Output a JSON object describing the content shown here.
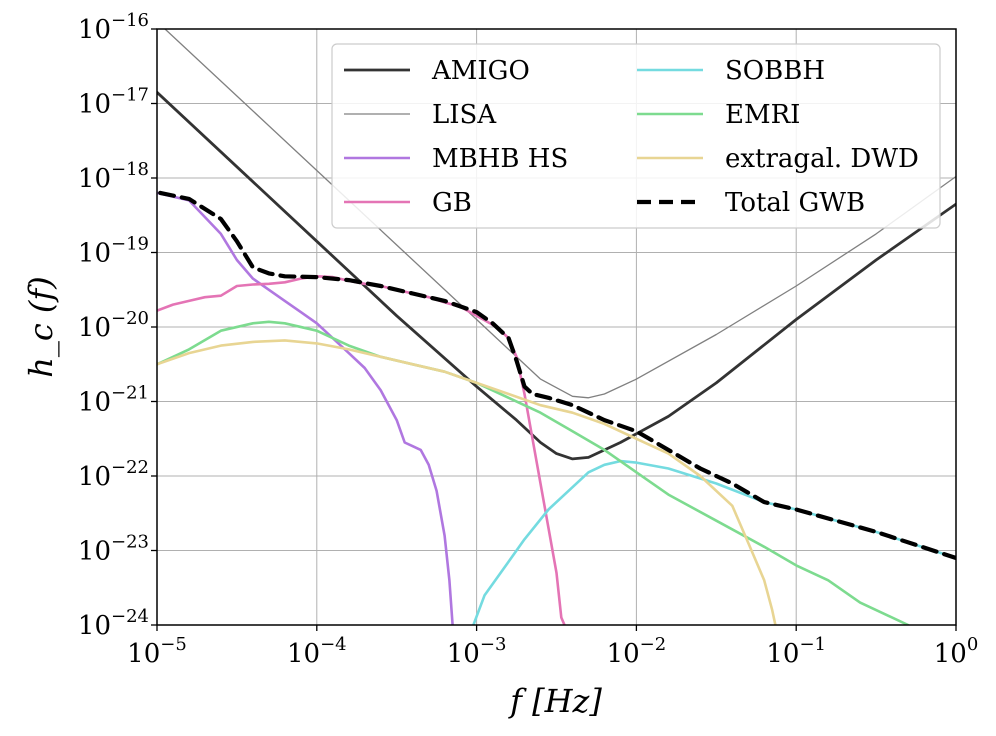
{
  "chart_data": {
    "type": "line",
    "xscale": "log",
    "yscale": "log",
    "xlim": [
      1e-05,
      1
    ],
    "ylim": [
      1e-24,
      1e-16
    ],
    "xlabel": "f [Hz]",
    "ylabel": "h_c (f)",
    "grid": true,
    "legend_position": "top-right",
    "x_ticks": [
      {
        "base": "10",
        "exp": "−5"
      },
      {
        "base": "10",
        "exp": "−4"
      },
      {
        "base": "10",
        "exp": "−3"
      },
      {
        "base": "10",
        "exp": "−2"
      },
      {
        "base": "10",
        "exp": "−1"
      },
      {
        "base": "10",
        "exp": "0"
      }
    ],
    "y_ticks": [
      {
        "base": "10",
        "exp": "−24"
      },
      {
        "base": "10",
        "exp": "−23"
      },
      {
        "base": "10",
        "exp": "−22"
      },
      {
        "base": "10",
        "exp": "−21"
      },
      {
        "base": "10",
        "exp": "−20"
      },
      {
        "base": "10",
        "exp": "−19"
      },
      {
        "base": "10",
        "exp": "−18"
      },
      {
        "base": "10",
        "exp": "−17"
      },
      {
        "base": "10",
        "exp": "−16"
      }
    ],
    "series": [
      {
        "name": "AMIGO",
        "color": "#333333",
        "width": 2.8,
        "dash": "",
        "log_points": [
          [
            -5,
            -16.85
          ],
          [
            -4.5,
            -17.85
          ],
          [
            -4,
            -18.85
          ],
          [
            -3.5,
            -19.85
          ],
          [
            -3,
            -20.8
          ],
          [
            -2.75,
            -21.25
          ],
          [
            -2.6,
            -21.55
          ],
          [
            -2.5,
            -21.7
          ],
          [
            -2.4,
            -21.77
          ],
          [
            -2.3,
            -21.75
          ],
          [
            -2.1,
            -21.55
          ],
          [
            -1.8,
            -21.2
          ],
          [
            -1.5,
            -20.75
          ],
          [
            -1,
            -19.9
          ],
          [
            -0.5,
            -19.1
          ],
          [
            0,
            -18.35
          ]
        ]
      },
      {
        "name": "LISA",
        "color": "#808080",
        "width": 1.3,
        "dash": "",
        "log_points": [
          [
            -4.95,
            -16
          ],
          [
            -4.5,
            -16.9
          ],
          [
            -4,
            -17.9
          ],
          [
            -3.5,
            -18.9
          ],
          [
            -3,
            -19.9
          ],
          [
            -2.8,
            -20.3
          ],
          [
            -2.6,
            -20.7
          ],
          [
            -2.4,
            -20.93
          ],
          [
            -2.3,
            -20.95
          ],
          [
            -2.2,
            -20.9
          ],
          [
            -2,
            -20.7
          ],
          [
            -1.5,
            -20.1
          ],
          [
            -1,
            -19.45
          ],
          [
            -0.5,
            -18.75
          ],
          [
            0,
            -17.98
          ]
        ]
      },
      {
        "name": "MBHB HS",
        "color": "#b077e0",
        "width": 2.6,
        "dash": "",
        "log_points": [
          [
            -5,
            -18.2
          ],
          [
            -4.8,
            -18.3
          ],
          [
            -4.6,
            -18.75
          ],
          [
            -4.5,
            -19.1
          ],
          [
            -4.4,
            -19.35
          ],
          [
            -4.3,
            -19.5
          ],
          [
            -4.2,
            -19.65
          ],
          [
            -4.1,
            -19.8
          ],
          [
            -4,
            -19.95
          ],
          [
            -3.9,
            -20.15
          ],
          [
            -3.8,
            -20.35
          ],
          [
            -3.7,
            -20.55
          ],
          [
            -3.6,
            -20.85
          ],
          [
            -3.5,
            -21.25
          ],
          [
            -3.45,
            -21.55
          ],
          [
            -3.4,
            -21.6
          ],
          [
            -3.35,
            -21.65
          ],
          [
            -3.3,
            -21.85
          ],
          [
            -3.25,
            -22.2
          ],
          [
            -3.2,
            -22.8
          ],
          [
            -3.17,
            -23.4
          ],
          [
            -3.15,
            -24
          ]
        ]
      },
      {
        "name": "GB",
        "color": "#e474b5",
        "width": 2.6,
        "dash": "",
        "log_points": [
          [
            -5,
            -19.78
          ],
          [
            -4.9,
            -19.7
          ],
          [
            -4.8,
            -19.65
          ],
          [
            -4.7,
            -19.6
          ],
          [
            -4.6,
            -19.58
          ],
          [
            -4.5,
            -19.45
          ],
          [
            -4.4,
            -19.43
          ],
          [
            -4.3,
            -19.42
          ],
          [
            -4.2,
            -19.4
          ],
          [
            -4.1,
            -19.35
          ],
          [
            -4,
            -19.32
          ],
          [
            -3.9,
            -19.33
          ],
          [
            -3.8,
            -19.38
          ],
          [
            -3.7,
            -19.42
          ],
          [
            -3.6,
            -19.45
          ],
          [
            -3.5,
            -19.5
          ],
          [
            -3.4,
            -19.55
          ],
          [
            -3.3,
            -19.6
          ],
          [
            -3.2,
            -19.67
          ],
          [
            -3.1,
            -19.73
          ],
          [
            -3,
            -19.85
          ],
          [
            -2.9,
            -19.97
          ],
          [
            -2.85,
            -20.05
          ],
          [
            -2.8,
            -20.15
          ],
          [
            -2.75,
            -20.4
          ],
          [
            -2.7,
            -20.9
          ],
          [
            -2.65,
            -21.5
          ],
          [
            -2.6,
            -22.1
          ],
          [
            -2.55,
            -22.7
          ],
          [
            -2.5,
            -23.3
          ],
          [
            -2.47,
            -23.9
          ],
          [
            -2.45,
            -24
          ]
        ]
      },
      {
        "name": "SOBBH",
        "color": "#74dbe0",
        "width": 2.6,
        "dash": "",
        "log_points": [
          [
            -3.02,
            -24
          ],
          [
            -2.95,
            -23.6
          ],
          [
            -2.85,
            -23.3
          ],
          [
            -2.7,
            -22.85
          ],
          [
            -2.55,
            -22.45
          ],
          [
            -2.4,
            -22.15
          ],
          [
            -2.3,
            -21.95
          ],
          [
            -2.2,
            -21.85
          ],
          [
            -2.1,
            -21.8
          ],
          [
            -2,
            -21.82
          ],
          [
            -1.8,
            -21.9
          ],
          [
            -1.5,
            -22.1
          ],
          [
            -1.2,
            -22.35
          ],
          [
            -1,
            -22.45
          ],
          [
            -0.5,
            -22.75
          ],
          [
            0,
            -23.1
          ]
        ]
      },
      {
        "name": "EMRI",
        "color": "#7ddb8f",
        "width": 2.6,
        "dash": "",
        "log_points": [
          [
            -5,
            -20.5
          ],
          [
            -4.8,
            -20.3
          ],
          [
            -4.6,
            -20.05
          ],
          [
            -4.4,
            -19.95
          ],
          [
            -4.3,
            -19.93
          ],
          [
            -4.2,
            -19.95
          ],
          [
            -4,
            -20.05
          ],
          [
            -3.8,
            -20.25
          ],
          [
            -3.6,
            -20.4
          ],
          [
            -3.4,
            -20.5
          ],
          [
            -3.2,
            -20.6
          ],
          [
            -3,
            -20.75
          ],
          [
            -2.8,
            -20.95
          ],
          [
            -2.6,
            -21.15
          ],
          [
            -2.4,
            -21.4
          ],
          [
            -2.2,
            -21.65
          ],
          [
            -2,
            -21.95
          ],
          [
            -1.8,
            -22.25
          ],
          [
            -1.5,
            -22.6
          ],
          [
            -1.2,
            -22.95
          ],
          [
            -1,
            -23.2
          ],
          [
            -0.8,
            -23.4
          ],
          [
            -0.6,
            -23.7
          ],
          [
            -0.3,
            -24
          ]
        ]
      },
      {
        "name": "extragal. DWD",
        "color": "#e8d593",
        "width": 2.6,
        "dash": "",
        "log_points": [
          [
            -5,
            -20.5
          ],
          [
            -4.8,
            -20.35
          ],
          [
            -4.6,
            -20.25
          ],
          [
            -4.4,
            -20.2
          ],
          [
            -4.2,
            -20.18
          ],
          [
            -4,
            -20.22
          ],
          [
            -3.8,
            -20.3
          ],
          [
            -3.6,
            -20.4
          ],
          [
            -3.4,
            -20.5
          ],
          [
            -3.2,
            -20.6
          ],
          [
            -3,
            -20.75
          ],
          [
            -2.8,
            -20.9
          ],
          [
            -2.6,
            -21.05
          ],
          [
            -2.4,
            -21.15
          ],
          [
            -2.2,
            -21.3
          ],
          [
            -2,
            -21.5
          ],
          [
            -1.8,
            -21.7
          ],
          [
            -1.6,
            -22
          ],
          [
            -1.4,
            -22.4
          ],
          [
            -1.3,
            -22.9
          ],
          [
            -1.2,
            -23.4
          ],
          [
            -1.15,
            -23.8
          ],
          [
            -1.13,
            -24
          ]
        ]
      },
      {
        "name": "Total GWB",
        "color": "#000000",
        "width": 4.2,
        "dash": "14,8",
        "log_points": [
          [
            -4.98,
            -18.2
          ],
          [
            -4.8,
            -18.28
          ],
          [
            -4.6,
            -18.55
          ],
          [
            -4.5,
            -18.85
          ],
          [
            -4.4,
            -19.2
          ],
          [
            -4.3,
            -19.28
          ],
          [
            -4.2,
            -19.32
          ],
          [
            -4,
            -19.33
          ],
          [
            -3.8,
            -19.37
          ],
          [
            -3.6,
            -19.45
          ],
          [
            -3.4,
            -19.55
          ],
          [
            -3.2,
            -19.65
          ],
          [
            -3,
            -19.8
          ],
          [
            -2.9,
            -19.95
          ],
          [
            -2.8,
            -20.15
          ],
          [
            -2.75,
            -20.45
          ],
          [
            -2.7,
            -20.8
          ],
          [
            -2.65,
            -20.9
          ],
          [
            -2.55,
            -20.95
          ],
          [
            -2.4,
            -21.05
          ],
          [
            -2.2,
            -21.25
          ],
          [
            -2,
            -21.4
          ],
          [
            -1.8,
            -21.65
          ],
          [
            -1.6,
            -21.9
          ],
          [
            -1.4,
            -22.1
          ],
          [
            -1.2,
            -22.35
          ],
          [
            -1,
            -22.45
          ],
          [
            -0.5,
            -22.75
          ],
          [
            0,
            -23.1
          ]
        ]
      }
    ]
  }
}
